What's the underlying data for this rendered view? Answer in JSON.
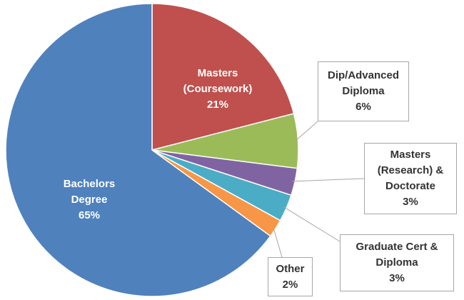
{
  "chart_data": {
    "type": "pie",
    "categories": [
      "Masters (Coursework)",
      "Dip/Advanced Diploma",
      "Masters (Research) & Doctorate",
      "Graduate Cert & Diploma",
      "Other",
      "Bachelors Degree"
    ],
    "values": [
      21,
      6,
      3,
      3,
      2,
      65
    ],
    "value_labels": [
      "21%",
      "6%",
      "3%",
      "3%",
      "2%",
      "65%"
    ],
    "colors": [
      "#c0504d",
      "#9bbb59",
      "#8064a2",
      "#4bacc6",
      "#f79646",
      "#4f81bd"
    ]
  }
}
